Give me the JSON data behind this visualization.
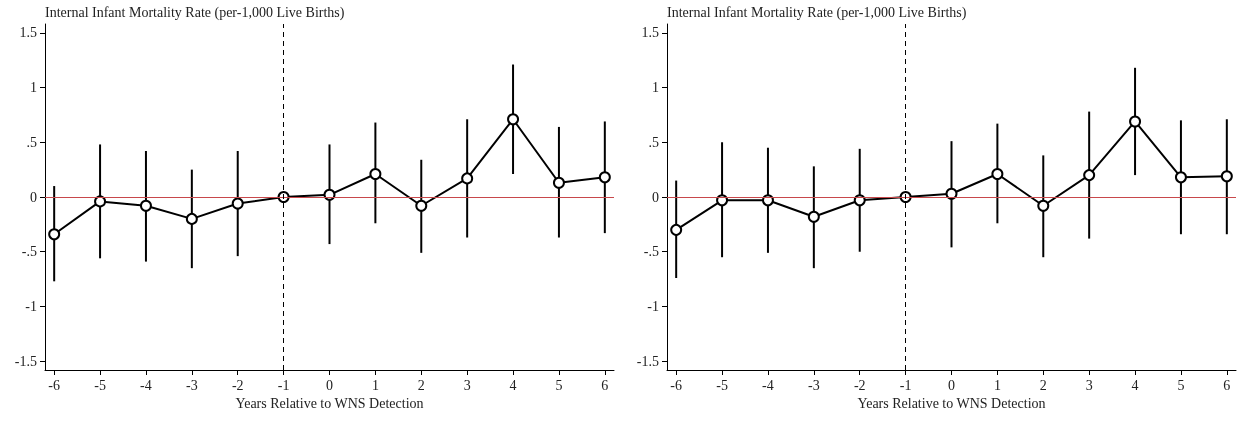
{
  "chart_data": [
    {
      "type": "line",
      "ylabel": "Internal Infant Mortality Rate (per-1,000 Live Births)",
      "xlabel": "Years Relative to WNS Detection",
      "x": [
        -6,
        -5,
        -4,
        -3,
        -2,
        -1,
        0,
        1,
        2,
        3,
        4,
        5,
        6
      ],
      "series": [
        {
          "color": "#000000",
          "values": [
            -0.34,
            -0.04,
            -0.08,
            -0.2,
            -0.06,
            0,
            0.02,
            0.21,
            -0.08,
            0.17,
            0.71,
            0.13,
            0.18
          ],
          "errors": [
            [
              -0.77,
              0.1
            ],
            [
              -0.56,
              0.48
            ],
            [
              -0.59,
              0.42
            ],
            [
              -0.65,
              0.25
            ],
            [
              -0.54,
              0.42
            ],
            null,
            [
              -0.43,
              0.48
            ],
            [
              -0.24,
              0.68
            ],
            [
              -0.51,
              0.34
            ],
            [
              -0.37,
              0.71
            ],
            [
              0.21,
              1.21
            ],
            [
              -0.37,
              0.64
            ],
            [
              -0.33,
              0.69
            ]
          ]
        }
      ],
      "marker": "circle",
      "grid": false,
      "xlim": [
        -6.2,
        6.2
      ],
      "xticks": [
        -6,
        -5,
        -4,
        -3,
        -2,
        -1,
        0,
        1,
        2,
        3,
        4,
        5,
        6
      ],
      "ylim": [
        -1.58,
        1.58
      ],
      "yticks": [
        {
          "value": -1.5,
          "label": "-1.5"
        },
        -1,
        {
          "value": -0.5,
          "label": "-.5"
        },
        0,
        {
          "value": 0.5,
          "label": ".5"
        },
        1,
        1.5
      ],
      "ref_lines": [
        {
          "axis": "y",
          "value": 0,
          "color": "#c8484b",
          "line_style": "solid"
        },
        {
          "axis": "x",
          "value": -1,
          "color": "#000000",
          "line_style": "dashed"
        }
      ]
    },
    {
      "type": "line",
      "ylabel": "Internal Infant Mortality Rate (per-1,000 Live Births)",
      "xlabel": "Years Relative to WNS Detection",
      "x": [
        -6,
        -5,
        -4,
        -3,
        -2,
        -1,
        0,
        1,
        2,
        3,
        4,
        5,
        6
      ],
      "series": [
        {
          "color": "#000000",
          "values": [
            -0.3,
            -0.03,
            -0.03,
            -0.18,
            -0.03,
            0,
            0.03,
            0.21,
            -0.08,
            0.2,
            0.69,
            0.18,
            0.19
          ],
          "errors": [
            [
              -0.74,
              0.15
            ],
            [
              -0.55,
              0.5
            ],
            [
              -0.51,
              0.45
            ],
            [
              -0.65,
              0.28
            ],
            [
              -0.5,
              0.44
            ],
            null,
            [
              -0.46,
              0.51
            ],
            [
              -0.24,
              0.67
            ],
            [
              -0.55,
              0.38
            ],
            [
              -0.38,
              0.78
            ],
            [
              0.2,
              1.18
            ],
            [
              -0.34,
              0.7
            ],
            [
              -0.34,
              0.71
            ]
          ]
        }
      ],
      "marker": "circle",
      "grid": false,
      "xlim": [
        -6.2,
        6.2
      ],
      "xticks": [
        -6,
        -5,
        -4,
        -3,
        -2,
        -1,
        0,
        1,
        2,
        3,
        4,
        5,
        6
      ],
      "ylim": [
        -1.58,
        1.58
      ],
      "yticks": [
        {
          "value": -1.5,
          "label": "-1.5"
        },
        -1,
        {
          "value": -0.5,
          "label": "-.5"
        },
        0,
        {
          "value": 0.5,
          "label": ".5"
        },
        1,
        1.5
      ],
      "ref_lines": [
        {
          "axis": "y",
          "value": 0,
          "color": "#c8484b",
          "line_style": "solid"
        },
        {
          "axis": "x",
          "value": -1,
          "color": "#000000",
          "line_style": "dashed"
        }
      ]
    }
  ]
}
